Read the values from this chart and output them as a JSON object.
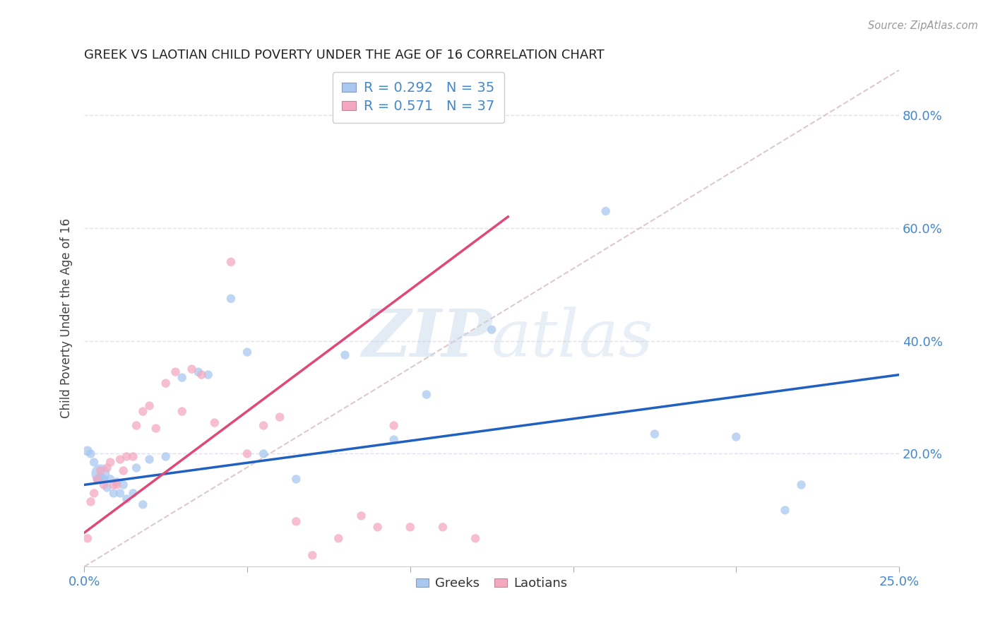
{
  "title": "GREEK VS LAOTIAN CHILD POVERTY UNDER THE AGE OF 16 CORRELATION CHART",
  "source": "Source: ZipAtlas.com",
  "ylabel": "Child Poverty Under the Age of 16",
  "xlim": [
    0.0,
    0.25
  ],
  "ylim": [
    0.0,
    0.88
  ],
  "greek_color": "#a8c8f0",
  "laotian_color": "#f4a8c0",
  "greek_line_color": "#2060c0",
  "laotian_line_color": "#e04878",
  "diagonal_color": "#d8c0c0",
  "legend_greek_R": "0.292",
  "legend_greek_N": "35",
  "legend_laotian_R": "0.571",
  "legend_laotian_N": "37",
  "background_color": "#ffffff",
  "grid_color": "#e0e0f0",
  "watermark": "ZIPatlas",
  "greek_x": [
    0.001,
    0.002,
    0.003,
    0.004,
    0.005,
    0.006,
    0.007,
    0.008,
    0.009,
    0.01,
    0.011,
    0.012,
    0.013,
    0.015,
    0.016,
    0.018,
    0.02,
    0.025,
    0.03,
    0.035,
    0.038,
    0.045,
    0.05,
    0.055,
    0.065,
    0.08,
    0.095,
    0.105,
    0.125,
    0.16,
    0.175,
    0.2,
    0.215,
    0.22,
    0.005
  ],
  "greek_y": [
    0.205,
    0.2,
    0.185,
    0.155,
    0.16,
    0.155,
    0.14,
    0.155,
    0.13,
    0.15,
    0.13,
    0.145,
    0.12,
    0.13,
    0.175,
    0.11,
    0.19,
    0.195,
    0.335,
    0.345,
    0.34,
    0.475,
    0.38,
    0.2,
    0.155,
    0.375,
    0.225,
    0.305,
    0.42,
    0.63,
    0.235,
    0.23,
    0.1,
    0.145,
    0.165
  ],
  "greek_sizes": [
    100,
    80,
    80,
    80,
    80,
    80,
    80,
    80,
    80,
    80,
    80,
    80,
    80,
    80,
    80,
    80,
    80,
    80,
    80,
    80,
    80,
    80,
    80,
    80,
    80,
    80,
    80,
    80,
    80,
    80,
    80,
    80,
    80,
    80,
    350
  ],
  "laotian_x": [
    0.001,
    0.002,
    0.003,
    0.004,
    0.005,
    0.006,
    0.007,
    0.008,
    0.009,
    0.01,
    0.011,
    0.012,
    0.013,
    0.015,
    0.016,
    0.018,
    0.02,
    0.022,
    0.025,
    0.028,
    0.03,
    0.033,
    0.036,
    0.04,
    0.045,
    0.05,
    0.055,
    0.06,
    0.065,
    0.07,
    0.078,
    0.085,
    0.09,
    0.095,
    0.1,
    0.11,
    0.12
  ],
  "laotian_y": [
    0.05,
    0.115,
    0.13,
    0.155,
    0.17,
    0.145,
    0.175,
    0.185,
    0.145,
    0.145,
    0.19,
    0.17,
    0.195,
    0.195,
    0.25,
    0.275,
    0.285,
    0.245,
    0.325,
    0.345,
    0.275,
    0.35,
    0.34,
    0.255,
    0.54,
    0.2,
    0.25,
    0.265,
    0.08,
    0.02,
    0.05,
    0.09,
    0.07,
    0.25,
    0.07,
    0.07,
    0.05
  ],
  "laotian_sizes": [
    80,
    80,
    80,
    80,
    80,
    80,
    80,
    80,
    80,
    80,
    80,
    80,
    80,
    80,
    80,
    80,
    80,
    80,
    80,
    80,
    80,
    80,
    80,
    80,
    80,
    80,
    80,
    80,
    80,
    80,
    80,
    80,
    80,
    80,
    80,
    80,
    80
  ],
  "greek_line_x0": 0.0,
  "greek_line_x1": 0.25,
  "greek_line_y0": 0.145,
  "greek_line_y1": 0.34,
  "laotian_line_x0": 0.0,
  "laotian_line_x1": 0.13,
  "laotian_line_y0": 0.06,
  "laotian_line_y1": 0.62
}
